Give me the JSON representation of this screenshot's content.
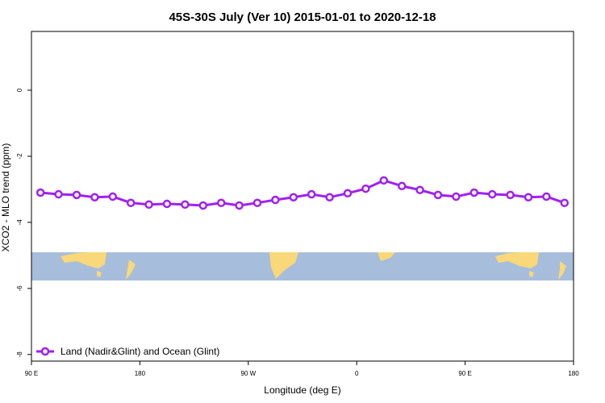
{
  "chart_data": {
    "type": "line",
    "title": "45S-30S July (Ver 10)   2015-01-01 to 2020-12-18",
    "x_label": "Longitude (deg E)",
    "y_label": "XCO2 - MLO trend (ppm)",
    "x": [
      97.5,
      112.5,
      127.5,
      142.5,
      157.5,
      172.5,
      187.5,
      202.5,
      217.5,
      232.5,
      247.5,
      262.5,
      277.5,
      292.5,
      307.5,
      322.5,
      337.5,
      352.5,
      367.5,
      382.5,
      397.5,
      412.5,
      427.5,
      442.5,
      457.5,
      472.5,
      487.5,
      502.5,
      517.5,
      532.5
    ],
    "series": [
      {
        "name": "Land (Nadir&Glint) and Ocean (Glint)",
        "color": "#a020f0",
        "values": [
          -3.1,
          -3.15,
          -3.17,
          -3.24,
          -3.22,
          -3.41,
          -3.46,
          -3.44,
          -3.46,
          -3.49,
          -3.41,
          -3.49,
          -3.41,
          -3.32,
          -3.24,
          -3.15,
          -3.24,
          -3.12,
          -2.98,
          -2.73,
          -2.9,
          -3.02,
          -3.17,
          -3.22,
          -3.1,
          -3.15,
          -3.17,
          -3.24,
          -3.22,
          -3.41
        ]
      }
    ],
    "xlim": [
      90,
      540
    ],
    "xticks": [
      {
        "value": 90,
        "label": "90 E"
      },
      {
        "value": 180,
        "label": "180"
      },
      {
        "value": 270,
        "label": "90 W"
      },
      {
        "value": 360,
        "label": "0"
      },
      {
        "value": 450,
        "label": "90 E"
      },
      {
        "value": 540,
        "label": "180"
      }
    ],
    "ylim": [
      -8.2,
      1.78
    ],
    "yticks": [
      0,
      -2,
      -4,
      -6,
      -8
    ],
    "legend": "bottom-left"
  }
}
